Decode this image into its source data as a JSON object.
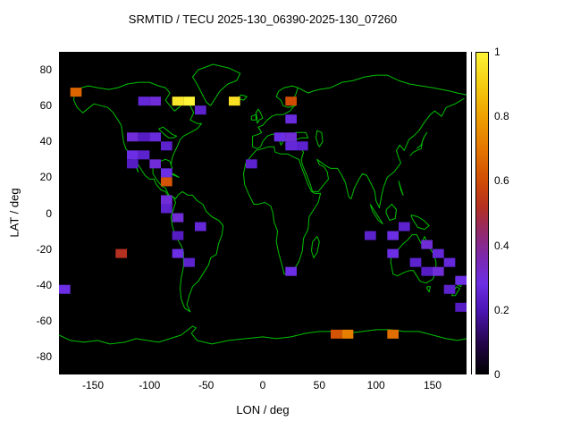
{
  "title": "SRMTID / TECU 2025-130_06390-2025-130_07260",
  "axes": {
    "x": {
      "label": "LON / deg",
      "min": -180,
      "max": 180,
      "ticks": [
        -150,
        -100,
        -50,
        0,
        50,
        100,
        150
      ],
      "tick_labels": [
        "-150",
        "-100",
        "-50",
        "0",
        "50",
        "100",
        "150"
      ]
    },
    "y": {
      "label": "LAT / deg",
      "min": -90,
      "max": 90,
      "ticks": [
        80,
        60,
        40,
        20,
        0,
        -20,
        -40,
        -60,
        -80
      ],
      "tick_labels": [
        "80",
        "60",
        "40",
        "20",
        "0",
        "-20",
        "-40",
        "-60",
        "-80"
      ]
    }
  },
  "colorbar": {
    "min": 0,
    "max": 1,
    "ticks": [
      0,
      0.2,
      0.4,
      0.6,
      0.8,
      1
    ],
    "tick_labels": [
      "0",
      "0.2",
      "0.4",
      "0.6",
      "0.8",
      "1"
    ]
  },
  "chart_data": {
    "type": "heatmap",
    "title": "SRMTID / TECU 2025-130_06390-2025-130_07260",
    "xlabel": "LON / deg",
    "ylabel": "LAT / deg",
    "xlim": [
      -180,
      180
    ],
    "ylim": [
      -90,
      90
    ],
    "value_range": [
      0,
      1
    ],
    "cell_size_deg": {
      "lon": 10,
      "lat": 5
    },
    "basemap": "world coastlines drawn as green outlines on black background",
    "background_color": "#000000",
    "coastline_color": "#00c000",
    "colormap_stops": [
      [
        0.0,
        "#000000"
      ],
      [
        0.1,
        "#26064e"
      ],
      [
        0.2,
        "#4c16b6"
      ],
      [
        0.28,
        "#6c2ee4"
      ],
      [
        0.36,
        "#7b28b0"
      ],
      [
        0.45,
        "#962a64"
      ],
      [
        0.52,
        "#b43020"
      ],
      [
        0.6,
        "#d04c04"
      ],
      [
        0.7,
        "#e47600"
      ],
      [
        0.8,
        "#eea000"
      ],
      [
        0.9,
        "#f4cc10"
      ],
      [
        1.0,
        "#fdf338"
      ]
    ],
    "cells": [
      [
        -170,
        65,
        0.66
      ],
      [
        -110,
        60,
        0.26
      ],
      [
        -100,
        60,
        0.3
      ],
      [
        -80,
        60,
        0.97
      ],
      [
        -70,
        60,
        1.0
      ],
      [
        -60,
        55,
        0.24
      ],
      [
        -30,
        60,
        0.95
      ],
      [
        20,
        60,
        0.6
      ],
      [
        20,
        50,
        0.27
      ],
      [
        -120,
        40,
        0.3
      ],
      [
        -110,
        40,
        0.22
      ],
      [
        -100,
        40,
        0.27
      ],
      [
        -90,
        35,
        0.24
      ],
      [
        -120,
        30,
        0.28
      ],
      [
        -110,
        30,
        0.24
      ],
      [
        -100,
        25,
        0.3
      ],
      [
        -120,
        25,
        0.22
      ],
      [
        -15,
        25,
        0.24
      ],
      [
        10,
        40,
        0.28
      ],
      [
        20,
        40,
        0.3
      ],
      [
        20,
        35,
        0.26
      ],
      [
        30,
        35,
        0.24
      ],
      [
        -90,
        20,
        0.28
      ],
      [
        -90,
        15,
        0.62
      ],
      [
        -90,
        5,
        0.3
      ],
      [
        -90,
        0,
        0.24
      ],
      [
        -80,
        -5,
        0.3
      ],
      [
        -60,
        -10,
        0.26
      ],
      [
        -80,
        -15,
        0.22
      ],
      [
        -130,
        -25,
        0.52
      ],
      [
        -80,
        -25,
        0.28
      ],
      [
        -70,
        -30,
        0.24
      ],
      [
        20,
        -35,
        0.28
      ],
      [
        90,
        -15,
        0.24
      ],
      [
        110,
        -15,
        0.28
      ],
      [
        120,
        -10,
        0.24
      ],
      [
        140,
        -20,
        0.3
      ],
      [
        150,
        -25,
        0.26
      ],
      [
        110,
        -25,
        0.28
      ],
      [
        130,
        -30,
        0.24
      ],
      [
        140,
        -35,
        0.22
      ],
      [
        150,
        -35,
        0.3
      ],
      [
        160,
        -30,
        0.26
      ],
      [
        170,
        -40,
        0.28
      ],
      [
        160,
        -45,
        0.24
      ],
      [
        170,
        -55,
        0.22
      ],
      [
        -180,
        -45,
        0.28
      ],
      [
        60,
        -70,
        0.62
      ],
      [
        70,
        -70,
        0.72
      ],
      [
        110,
        -70,
        0.68
      ]
    ]
  }
}
